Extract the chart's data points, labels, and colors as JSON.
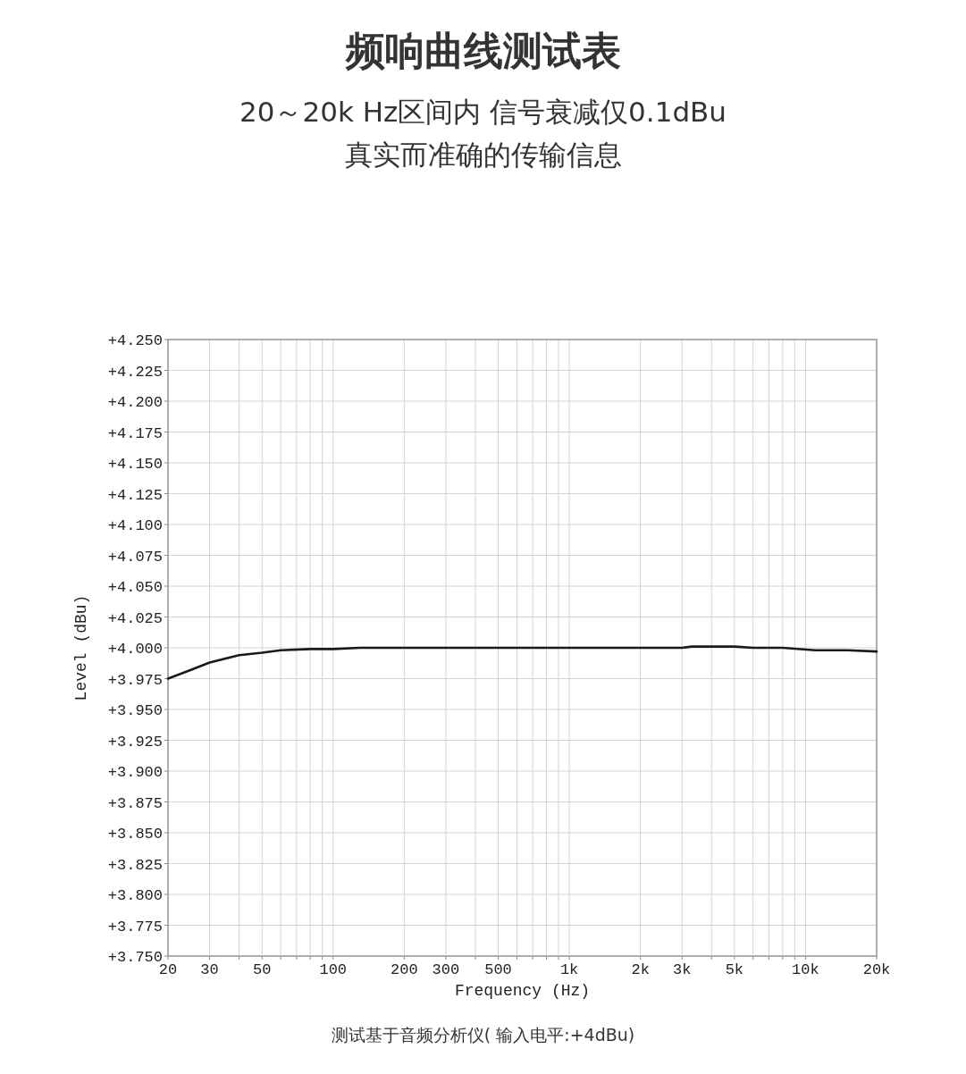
{
  "chart_data": {
    "type": "line",
    "title": "频响曲线测试表",
    "subtitle": "20～20k Hz区间内 信号衰减仅0.1dBu\n真实而准确的传输信息",
    "xlabel": "Frequency (Hz)",
    "ylabel": "Level (dBu)",
    "annotations": [
      "测试基于音频分析仪( 输入电平:+4dBu)"
    ],
    "log": "x",
    "grid": true,
    "xlim": [
      20,
      20000
    ],
    "xticks": [
      20,
      30,
      {
        "value": 40,
        "label": null
      },
      50,
      {
        "value": 60,
        "label": null
      },
      {
        "value": 70,
        "label": null
      },
      {
        "value": 80,
        "label": null
      },
      {
        "value": 90,
        "label": null
      },
      100,
      200,
      300,
      {
        "value": 400,
        "label": null
      },
      500,
      {
        "value": 600,
        "label": null
      },
      {
        "value": 700,
        "label": null
      },
      {
        "value": 800,
        "label": null
      },
      {
        "value": 900,
        "label": null
      },
      {
        "value": 1000,
        "label": "1k"
      },
      {
        "value": 2000,
        "label": "2k"
      },
      {
        "value": 3000,
        "label": "3k"
      },
      {
        "value": 4000,
        "label": null
      },
      {
        "value": 5000,
        "label": "5k"
      },
      {
        "value": 6000,
        "label": null
      },
      {
        "value": 7000,
        "label": null
      },
      {
        "value": 8000,
        "label": null
      },
      {
        "value": 9000,
        "label": null
      },
      {
        "value": 10000,
        "label": "10k"
      },
      {
        "value": 20000,
        "label": "20k"
      }
    ],
    "ylim": [
      3.75,
      4.25
    ],
    "yticks": [
      {
        "value": 3.75,
        "label": "+3.750"
      },
      {
        "value": 3.775,
        "label": "+3.775"
      },
      {
        "value": 3.8,
        "label": "+3.800"
      },
      {
        "value": 3.825,
        "label": "+3.825"
      },
      {
        "value": 3.85,
        "label": "+3.850"
      },
      {
        "value": 3.875,
        "label": "+3.875"
      },
      {
        "value": 3.9,
        "label": "+3.900"
      },
      {
        "value": 3.925,
        "label": "+3.925"
      },
      {
        "value": 3.95,
        "label": "+3.950"
      },
      {
        "value": 3.975,
        "label": "+3.975"
      },
      {
        "value": 4.0,
        "label": "+4.000"
      },
      {
        "value": 4.025,
        "label": "+4.025"
      },
      {
        "value": 4.05,
        "label": "+4.050"
      },
      {
        "value": 4.075,
        "label": "+4.075"
      },
      {
        "value": 4.1,
        "label": "+4.100"
      },
      {
        "value": 4.125,
        "label": "+4.125"
      },
      {
        "value": 4.15,
        "label": "+4.150"
      },
      {
        "value": 4.175,
        "label": "+4.175"
      },
      {
        "value": 4.2,
        "label": "+4.200"
      },
      {
        "value": 4.225,
        "label": "+4.225"
      },
      {
        "value": 4.25,
        "label": "+4.250"
      }
    ],
    "series": [
      {
        "color": "#1a1a1a",
        "x": [
          20,
          25,
          30,
          40,
          50,
          60,
          80,
          100,
          130,
          1000,
          3000,
          3300,
          5000,
          6000,
          8000,
          11000,
          15000,
          20000
        ],
        "values": [
          3.975,
          3.982,
          3.988,
          3.994,
          3.996,
          3.998,
          3.999,
          3.999,
          4.0,
          4.0,
          4.0,
          4.001,
          4.001,
          4.0,
          4.0,
          3.998,
          3.998,
          3.997
        ]
      }
    ]
  }
}
